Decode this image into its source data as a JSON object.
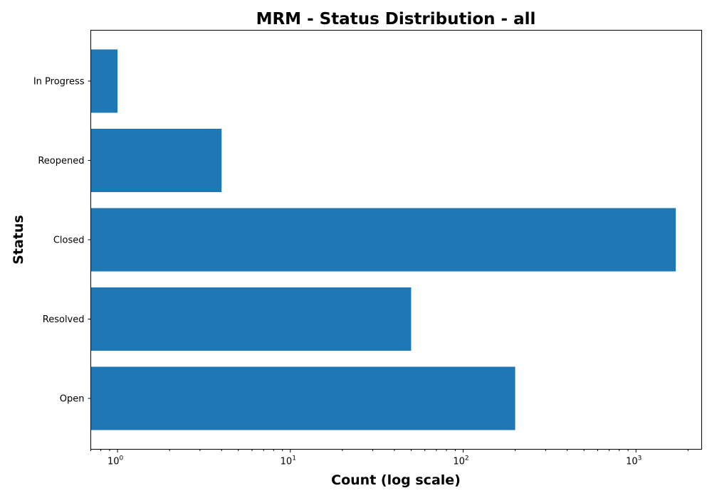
{
  "chart_data": {
    "type": "bar",
    "orientation": "horizontal",
    "title": "MRM - Status Distribution - all",
    "xlabel": "Count (log scale)",
    "ylabel": "Status",
    "xscale": "log",
    "xlim": [
      0.7,
      2400
    ],
    "grid": false,
    "categories": [
      "In Progress",
      "Reopened",
      "Closed",
      "Resolved",
      "Open"
    ],
    "values": [
      1,
      4,
      1700,
      50,
      200
    ],
    "bar_color": "#1f77b4",
    "x_ticks": [
      {
        "value": 1,
        "base": "10",
        "exp": "0"
      },
      {
        "value": 10,
        "base": "10",
        "exp": "1"
      },
      {
        "value": 100,
        "base": "10",
        "exp": "2"
      },
      {
        "value": 1000,
        "base": "10",
        "exp": "3"
      }
    ]
  }
}
